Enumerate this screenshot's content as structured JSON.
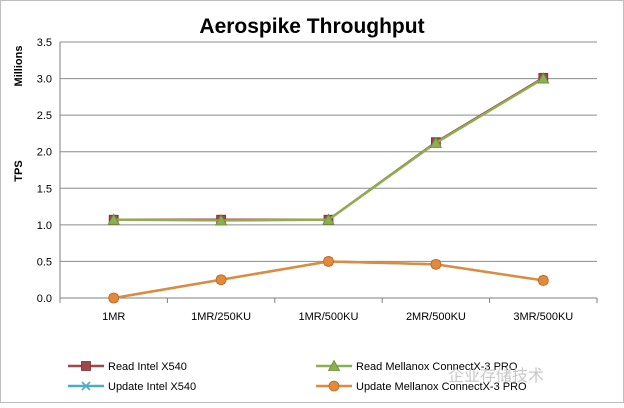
{
  "chart_data": {
    "type": "line",
    "title": "Aerospike Throughput",
    "ylabel": "TPS",
    "yunit": "Millions",
    "categories": [
      "1MR",
      "1MR/250KU",
      "1MR/500KU",
      "2MR/500KU",
      "3MR/500KU"
    ],
    "ylim": [
      0,
      3.5
    ],
    "yticks": [
      "0.0",
      "0.5",
      "1.0",
      "1.5",
      "2.0",
      "2.5",
      "3.0",
      "3.5"
    ],
    "grid": true,
    "legend_position": "bottom",
    "series": [
      {
        "name": "Read Intel X540",
        "values": [
          1.07,
          1.07,
          1.07,
          2.13,
          3.01
        ],
        "color": "#a0464d",
        "marker": "square"
      },
      {
        "name": "Read Mellanox ConnectX-3 PRO",
        "values": [
          1.07,
          1.06,
          1.07,
          2.12,
          3.0
        ],
        "color": "#8cb050",
        "marker": "triangle"
      },
      {
        "name": "Update Intel X540",
        "values": [
          0.0,
          0.25,
          0.5,
          0.46,
          0.24
        ],
        "color": "#4bacc6",
        "marker": "x"
      },
      {
        "name": "Update Mellanox ConnectX-3 PRO",
        "values": [
          0.0,
          0.25,
          0.5,
          0.46,
          0.24
        ],
        "color": "#e38a3a",
        "marker": "circle"
      }
    ]
  },
  "watermark": "企业存储技术"
}
